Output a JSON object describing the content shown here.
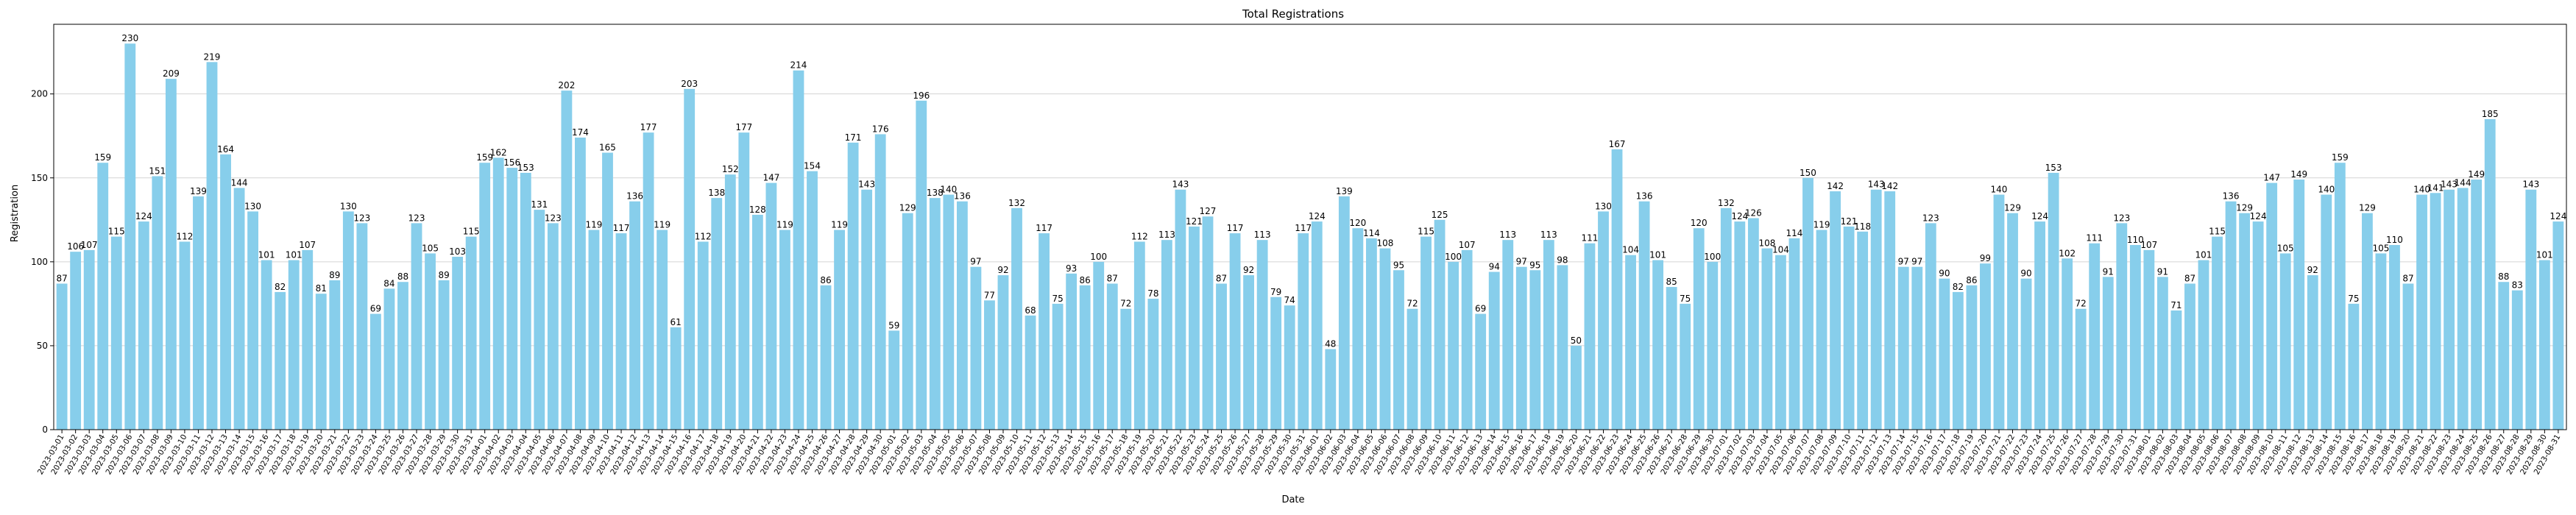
{
  "chart_data": {
    "type": "bar",
    "title": "Total Registrations",
    "xlabel": "Date",
    "ylabel": "Registration",
    "ylim": [
      0,
      241.5
    ],
    "yticks": [
      0,
      50,
      100,
      150,
      200
    ],
    "grid": "horizontal",
    "bar_color": "#87ceeb",
    "categories": [
      "2023-03-01",
      "2023-03-02",
      "2023-03-03",
      "2023-03-04",
      "2023-03-05",
      "2023-03-06",
      "2023-03-07",
      "2023-03-08",
      "2023-03-09",
      "2023-03-10",
      "2023-03-11",
      "2023-03-12",
      "2023-03-13",
      "2023-03-14",
      "2023-03-15",
      "2023-03-16",
      "2023-03-17",
      "2023-03-18",
      "2023-03-19",
      "2023-03-20",
      "2023-03-21",
      "2023-03-22",
      "2023-03-23",
      "2023-03-24",
      "2023-03-25",
      "2023-03-26",
      "2023-03-27",
      "2023-03-28",
      "2023-03-29",
      "2023-03-30",
      "2023-03-31",
      "2023-04-01",
      "2023-04-02",
      "2023-04-03",
      "2023-04-04",
      "2023-04-05",
      "2023-04-06",
      "2023-04-07",
      "2023-04-08",
      "2023-04-09",
      "2023-04-10",
      "2023-04-11",
      "2023-04-12",
      "2023-04-13",
      "2023-04-14",
      "2023-04-15",
      "2023-04-16",
      "2023-04-17",
      "2023-04-18",
      "2023-04-19",
      "2023-04-20",
      "2023-04-21",
      "2023-04-22",
      "2023-04-23",
      "2023-04-24",
      "2023-04-25",
      "2023-04-26",
      "2023-04-27",
      "2023-04-28",
      "2023-04-29",
      "2023-04-30",
      "2023-05-01",
      "2023-05-02",
      "2023-05-03",
      "2023-05-04",
      "2023-05-05",
      "2023-05-06",
      "2023-05-07",
      "2023-05-08",
      "2023-05-09",
      "2023-05-10",
      "2023-05-11",
      "2023-05-12",
      "2023-05-13",
      "2023-05-14",
      "2023-05-15",
      "2023-05-16",
      "2023-05-17",
      "2023-05-18",
      "2023-05-19",
      "2023-05-20",
      "2023-05-21",
      "2023-05-22",
      "2023-05-23",
      "2023-05-24",
      "2023-05-25",
      "2023-05-26",
      "2023-05-27",
      "2023-05-28",
      "2023-05-29",
      "2023-05-30",
      "2023-05-31",
      "2023-06-01",
      "2023-06-02",
      "2023-06-03",
      "2023-06-04",
      "2023-06-05",
      "2023-06-06",
      "2023-06-07",
      "2023-06-08",
      "2023-06-09",
      "2023-06-10",
      "2023-06-11",
      "2023-06-12",
      "2023-06-13",
      "2023-06-14",
      "2023-06-15",
      "2023-06-16",
      "2023-06-17",
      "2023-06-18",
      "2023-06-19",
      "2023-06-20",
      "2023-06-21",
      "2023-06-22",
      "2023-06-23",
      "2023-06-24",
      "2023-06-25",
      "2023-06-26",
      "2023-06-27",
      "2023-06-28",
      "2023-06-29",
      "2023-06-30",
      "2023-07-01",
      "2023-07-02",
      "2023-07-03",
      "2023-07-04",
      "2023-07-05",
      "2023-07-06",
      "2023-07-07",
      "2023-07-08",
      "2023-07-09",
      "2023-07-10",
      "2023-07-11",
      "2023-07-12",
      "2023-07-13",
      "2023-07-14",
      "2023-07-15",
      "2023-07-16",
      "2023-07-17",
      "2023-07-18",
      "2023-07-19",
      "2023-07-20",
      "2023-07-21",
      "2023-07-22",
      "2023-07-23",
      "2023-07-24",
      "2023-07-25",
      "2023-07-26",
      "2023-07-27",
      "2023-07-28",
      "2023-07-29",
      "2023-07-30",
      "2023-07-31",
      "2023-08-01",
      "2023-08-02",
      "2023-08-03",
      "2023-08-04",
      "2023-08-05",
      "2023-08-06",
      "2023-08-07",
      "2023-08-08",
      "2023-08-09",
      "2023-08-10",
      "2023-08-11",
      "2023-08-12",
      "2023-08-13",
      "2023-08-14",
      "2023-08-15",
      "2023-08-16",
      "2023-08-17",
      "2023-08-18",
      "2023-08-19",
      "2023-08-20",
      "2023-08-21",
      "2023-08-22",
      "2023-08-23",
      "2023-08-24",
      "2023-08-25",
      "2023-08-26",
      "2023-08-27",
      "2023-08-28",
      "2023-08-29",
      "2023-08-30",
      "2023-08-31"
    ],
    "values": [
      87,
      106,
      107,
      159,
      115,
      230,
      124,
      151,
      209,
      112,
      139,
      219,
      164,
      144,
      130,
      101,
      82,
      101,
      107,
      81,
      89,
      130,
      123,
      69,
      84,
      88,
      123,
      105,
      89,
      103,
      115,
      159,
      162,
      156,
      153,
      131,
      123,
      202,
      174,
      119,
      165,
      117,
      136,
      177,
      119,
      61,
      203,
      112,
      138,
      152,
      177,
      128,
      147,
      119,
      214,
      154,
      86,
      119,
      171,
      143,
      176,
      59,
      129,
      196,
      138,
      140,
      136,
      97,
      77,
      92,
      132,
      68,
      117,
      75,
      93,
      86,
      100,
      87,
      72,
      112,
      78,
      113,
      143,
      121,
      127,
      87,
      117,
      92,
      113,
      79,
      74,
      117,
      124,
      48,
      139,
      120,
      114,
      108,
      95,
      72,
      115,
      125,
      100,
      107,
      69,
      94,
      113,
      97,
      95,
      113,
      98,
      50,
      111,
      130,
      167,
      104,
      136,
      101,
      85,
      75,
      120,
      100,
      132,
      124,
      126,
      108,
      104,
      114,
      150,
      119,
      142,
      121,
      118,
      143,
      142,
      97,
      97,
      123,
      90,
      82,
      86,
      99,
      140,
      129,
      90,
      124,
      153,
      102,
      72,
      111,
      91,
      123,
      110,
      107,
      91,
      71,
      87,
      101,
      115,
      136,
      129,
      124,
      147,
      105,
      149,
      92,
      140,
      159,
      75,
      129,
      105,
      110,
      87,
      140,
      141,
      143,
      144,
      149,
      185,
      88,
      83,
      143,
      101,
      124
    ]
  }
}
